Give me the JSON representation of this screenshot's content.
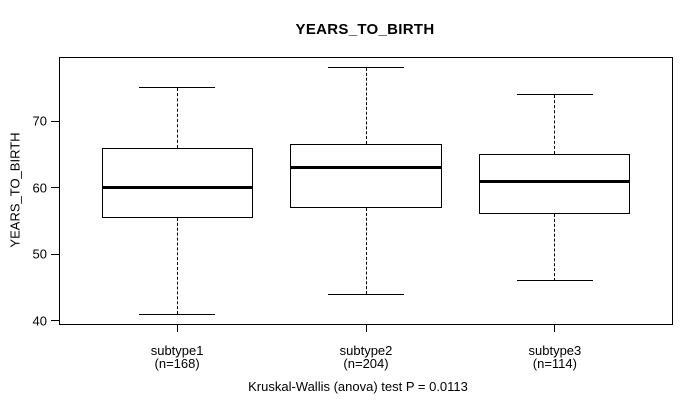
{
  "figure": {
    "title": "YEARS_TO_BIRTH",
    "y_axis_label": "YEARS_TO_BIRTH",
    "caption": "Kruskal-Wallis (anova) test P = 0.0113"
  },
  "chart_data": {
    "type": "boxplot",
    "title": "YEARS_TO_BIRTH",
    "xlabel": "",
    "ylabel": "YEARS_TO_BIRTH",
    "caption": "Kruskal-Wallis (anova) test P = 0.0113",
    "yticks": [
      40,
      50,
      60,
      70
    ],
    "ylim": [
      39.5,
      79.5
    ],
    "xlim": [
      0.38,
      3.62
    ],
    "box_width": 0.8,
    "grid": false,
    "legend": false,
    "line_color": "#000000",
    "box_fill": "#ffffff",
    "groups": [
      {
        "label": "subtype1",
        "sublabel": "(n=168)",
        "n": 168,
        "position": 1,
        "whisker_low": 41,
        "q1": 55.5,
        "median": 60,
        "q3": 66,
        "whisker_high": 75
      },
      {
        "label": "subtype2",
        "sublabel": "(n=204)",
        "n": 204,
        "position": 2,
        "whisker_low": 44,
        "q1": 57,
        "median": 63,
        "q3": 66.5,
        "whisker_high": 78
      },
      {
        "label": "subtype3",
        "sublabel": "(n=114)",
        "n": 114,
        "position": 3,
        "whisker_low": 46,
        "q1": 56,
        "median": 61,
        "q3": 65,
        "whisker_high": 74
      }
    ]
  }
}
